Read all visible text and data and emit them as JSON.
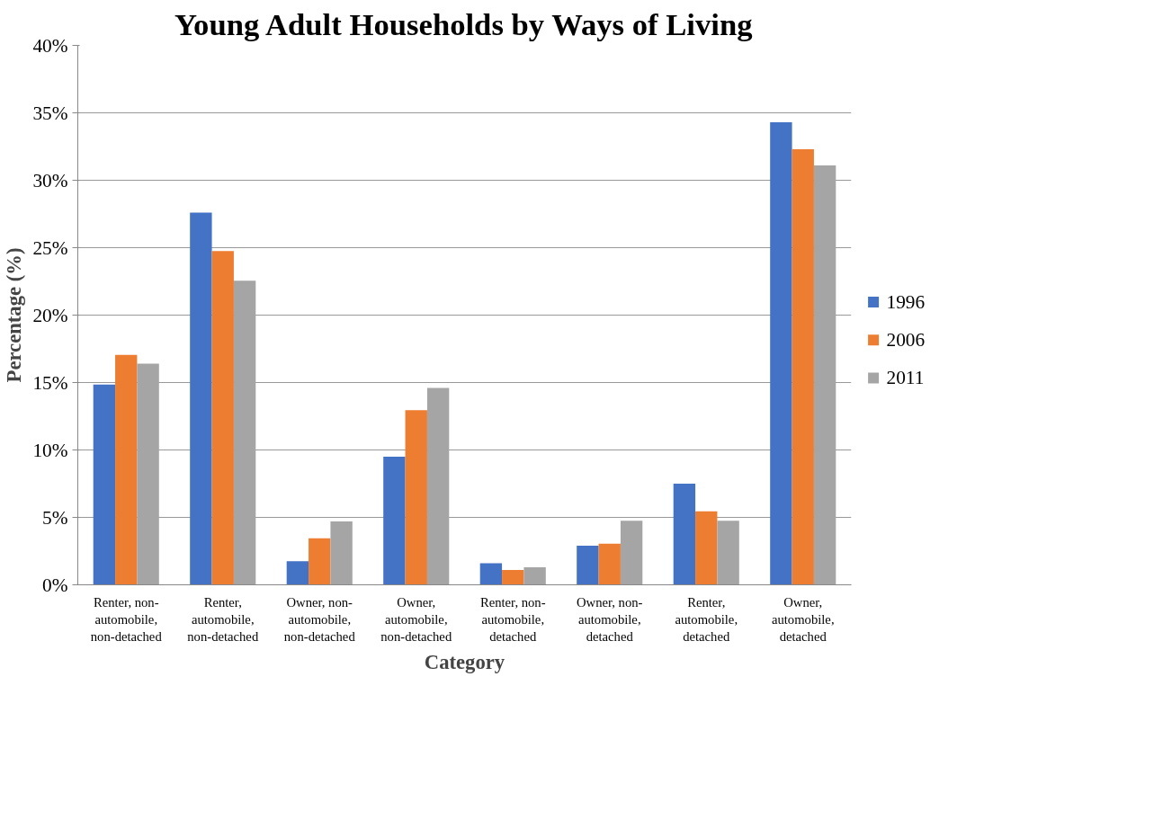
{
  "chart_data": {
    "type": "bar",
    "title": "Young Adult Households by Ways of Living",
    "xlabel": "Category",
    "ylabel": "Percentage (%)",
    "categories": [
      "Renter, non-automobile, non-detached",
      "Renter, automobile, non-detached",
      "Owner, non-automobile, non-detached",
      "Owner, automobile, non-detached",
      "Renter, non-automobile, detached",
      "Owner, non-automobile, detached",
      "Renter, automobile, detached",
      "Owner, automobile, detached"
    ],
    "series": [
      {
        "name": "1996",
        "color": "#4472c4",
        "values": [
          14.85,
          27.6,
          1.75,
          9.5,
          1.6,
          2.9,
          7.5,
          34.3
        ]
      },
      {
        "name": "2006",
        "color": "#ed7d31",
        "values": [
          17.05,
          24.75,
          3.45,
          12.95,
          1.1,
          3.05,
          5.45,
          32.3
        ]
      },
      {
        "name": "2011",
        "color": "#a5a5a5",
        "values": [
          16.4,
          22.55,
          4.7,
          14.6,
          1.3,
          4.75,
          4.75,
          31.1
        ]
      }
    ],
    "ylim": [
      0,
      40
    ],
    "yticks": [
      {
        "value": 0,
        "label": "0%"
      },
      {
        "value": 5,
        "label": "5%"
      },
      {
        "value": 10,
        "label": "10%"
      },
      {
        "value": 15,
        "label": "15%"
      },
      {
        "value": 20,
        "label": "20%"
      },
      {
        "value": 25,
        "label": "25%"
      },
      {
        "value": 30,
        "label": "30%"
      },
      {
        "value": 35,
        "label": "35%"
      },
      {
        "value": 40,
        "label": "40%"
      }
    ],
    "grid": "y",
    "legend": "right"
  }
}
